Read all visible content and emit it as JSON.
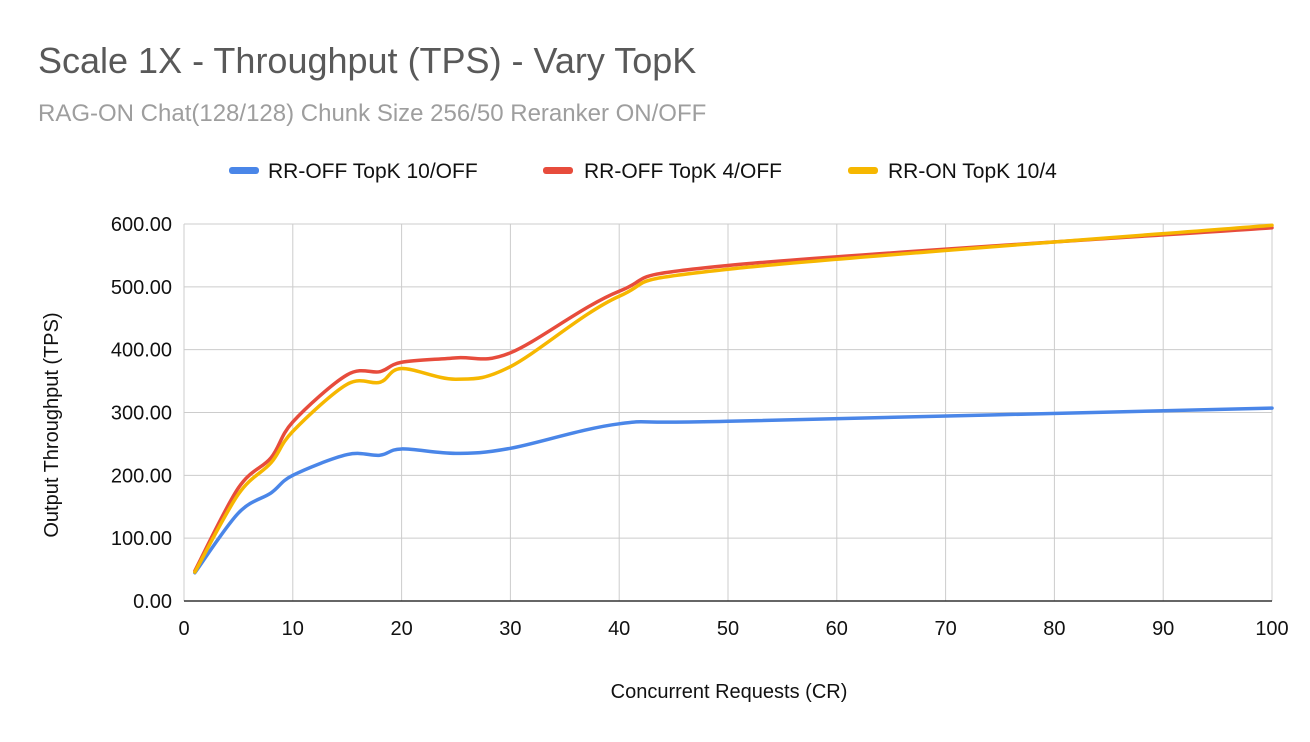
{
  "chart_data": {
    "type": "line",
    "title": "Scale 1X - Throughput (TPS) - Vary TopK",
    "subtitle": "RAG-ON Chat(128/128) Chunk Size 256/50 Reranker ON/OFF",
    "xlabel": "Concurrent Requests (CR)",
    "ylabel": "Output Throughput (TPS)",
    "xlim": [
      0,
      100
    ],
    "ylim": [
      0,
      600
    ],
    "xticks": [
      "0",
      "10",
      "20",
      "30",
      "40",
      "50",
      "60",
      "70",
      "80",
      "90",
      "100"
    ],
    "yticks": [
      "0.00",
      "100.00",
      "200.00",
      "300.00",
      "400.00",
      "500.00",
      "600.00"
    ],
    "grid": true,
    "legend_position": "top",
    "x": [
      1,
      5,
      8,
      10,
      15,
      18,
      20,
      25,
      30,
      40,
      50,
      100
    ],
    "series": [
      {
        "name": "RR-OFF TopK 10/OFF",
        "color": "#4a86e8",
        "values": [
          45,
          140,
          172,
          200,
          233,
          232,
          242,
          235,
          243,
          282,
          286,
          307
        ]
      },
      {
        "name": "RR-OFF TopK 4/OFF",
        "color": "#e74c3c",
        "values": [
          48,
          180,
          228,
          285,
          360,
          365,
          380,
          387,
          395,
          493,
          534,
          594
        ]
      },
      {
        "name": "RR-ON TopK 10/4",
        "color": "#f6b700",
        "values": [
          46,
          170,
          220,
          270,
          345,
          348,
          370,
          353,
          373,
          485,
          528,
          598
        ]
      }
    ]
  }
}
